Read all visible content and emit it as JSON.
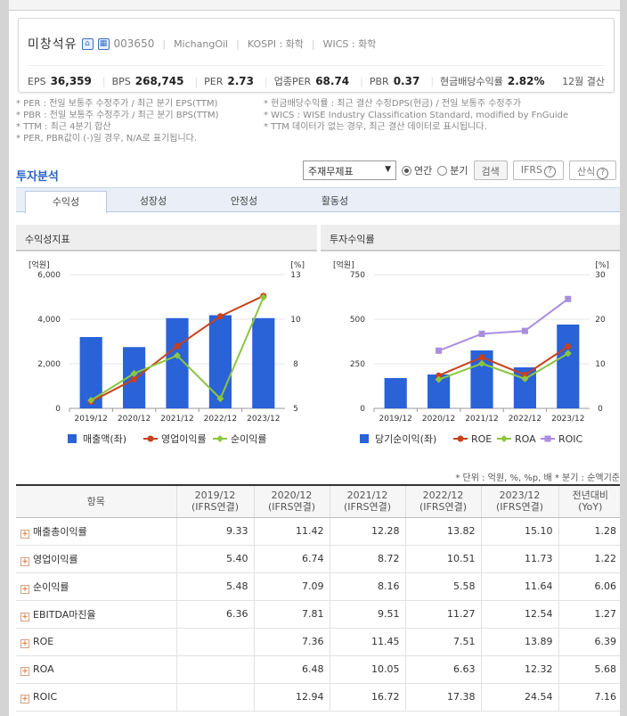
{
  "company": {
    "name": "미창석유",
    "code": "003650",
    "eng_name": "MichangOil",
    "kospi": "KOSPI : 화학",
    "wics": "WICS : 화학"
  },
  "metrics": [
    {
      "label": "EPS",
      "value": "36,359"
    },
    {
      "label": "BPS",
      "value": "268,745"
    },
    {
      "label": "PER",
      "value": "2.73"
    },
    {
      "label": "업종PER",
      "value": "68.74"
    },
    {
      "label": "PBR",
      "value": "0.37"
    },
    {
      "label": "현금배당수익률",
      "value": "2.82%"
    }
  ],
  "settlement": "12월 결산",
  "notes_left": [
    "* PER : 전일 보통주 수정주가 / 최근 분기 EPS(TTM)",
    "* PBR : 전일 보통주 수정주가 / 최근 분기 BPS(TTM)",
    "* TTM : 최근 4분기 합산",
    "* PER, PBR값이 (-)일 경우, N/A로 표기됩니다."
  ],
  "notes_right": [
    "* 현금배당수익률 : 최근 결산 수정DPS(현금) / 전일 보통주 수정주가",
    "* WICS : WISE Industry Classification Standard, modified by FnGuide",
    "* TTM 데이터가 없는 경우, 최근 결산 데이터로 표시됩니다."
  ],
  "section_title": "투자분석",
  "controls": {
    "select_value": "주재무제표",
    "radio_year": "연간",
    "radio_quarter": "분기",
    "search": "검색",
    "ifrs": "IFRS",
    "formula": "산식",
    "help": "?"
  },
  "tabs": [
    "수익성",
    "성장성",
    "안정성",
    "활동성"
  ],
  "chart_titles": [
    "수익성지표",
    "투자수익률"
  ],
  "chart_data": [
    {
      "type": "bar",
      "categories": [
        "2019/12",
        "2020/12",
        "2021/12",
        "2022/12",
        "2023/12"
      ],
      "ylabel": "[억원]",
      "y2label": "[%]",
      "ylim": [
        0,
        6000
      ],
      "y2lim": [
        5,
        13
      ],
      "yticks": [
        "0",
        "2,000",
        "4,000",
        "6,000"
      ],
      "y2ticks": [
        "5",
        "8",
        "10",
        "13"
      ],
      "series": [
        {
          "name": "매출액(좌)",
          "kind": "bar",
          "axis": "left",
          "color": "#2a62d8",
          "values": [
            3200,
            2750,
            4050,
            4180,
            4050
          ]
        },
        {
          "name": "영업이익률",
          "kind": "line",
          "axis": "right",
          "color": "#c9401a",
          "values": [
            5.4,
            6.74,
            8.72,
            10.51,
            11.73
          ]
        },
        {
          "name": "순이익률",
          "kind": "line",
          "axis": "right",
          "color": "#8cc63f",
          "values": [
            5.48,
            7.09,
            8.16,
            5.58,
            11.64
          ]
        }
      ],
      "legend": "bottom"
    },
    {
      "type": "bar",
      "categories": [
        "2019/12",
        "2020/12",
        "2021/12",
        "2022/12",
        "2023/12"
      ],
      "ylabel": "[억원]",
      "y2label": "[%]",
      "ylim": [
        0,
        750
      ],
      "y2lim": [
        0,
        30
      ],
      "yticks": [
        "0",
        "250",
        "500",
        "750"
      ],
      "y2ticks": [
        "0",
        "10",
        "20",
        "30"
      ],
      "series": [
        {
          "name": "당기순이익(좌)",
          "kind": "bar",
          "axis": "left",
          "color": "#2a62d8",
          "values": [
            170,
            190,
            325,
            230,
            470
          ]
        },
        {
          "name": "ROE",
          "kind": "line",
          "axis": "right",
          "color": "#c9401a",
          "values": [
            null,
            7.36,
            11.45,
            7.51,
            13.89
          ]
        },
        {
          "name": "ROA",
          "kind": "line",
          "axis": "right",
          "color": "#8cc63f",
          "values": [
            null,
            6.48,
            10.05,
            6.63,
            12.32
          ]
        },
        {
          "name": "ROIC",
          "kind": "line",
          "axis": "right",
          "color": "#a98ee0",
          "values": [
            null,
            12.94,
            16.72,
            17.38,
            24.54
          ]
        }
      ],
      "legend": "bottom"
    }
  ],
  "unit_note": "* 단위 : 억원, %, %p, 배     * 분기 : 순액기준",
  "table": {
    "headers": [
      {
        "l1": "항목",
        "l2": ""
      },
      {
        "l1": "2019/12",
        "l2": "(IFRS연결)"
      },
      {
        "l1": "2020/12",
        "l2": "(IFRS연결)"
      },
      {
        "l1": "2021/12",
        "l2": "(IFRS연결)"
      },
      {
        "l1": "2022/12",
        "l2": "(IFRS연결)"
      },
      {
        "l1": "2023/12",
        "l2": "(IFRS연결)"
      },
      {
        "l1": "전년대비",
        "l2": "(YoY)"
      }
    ],
    "rows": [
      {
        "label": "매출총이익률",
        "values": [
          "9.33",
          "11.42",
          "12.28",
          "13.82",
          "15.10",
          "1.28"
        ]
      },
      {
        "label": "영업이익률",
        "values": [
          "5.40",
          "6.74",
          "8.72",
          "10.51",
          "11.73",
          "1.22"
        ]
      },
      {
        "label": "순이익률",
        "values": [
          "5.48",
          "7.09",
          "8.16",
          "5.58",
          "11.64",
          "6.06"
        ]
      },
      {
        "label": "EBITDA마진율",
        "values": [
          "6.36",
          "7.81",
          "9.51",
          "11.27",
          "12.54",
          "1.27"
        ]
      },
      {
        "label": "ROE",
        "values": [
          "",
          "7.36",
          "11.45",
          "7.51",
          "13.89",
          "6.39"
        ]
      },
      {
        "label": "ROA",
        "values": [
          "",
          "6.48",
          "10.05",
          "6.63",
          "12.32",
          "5.68"
        ]
      },
      {
        "label": "ROIC",
        "values": [
          "",
          "12.94",
          "16.72",
          "17.38",
          "24.54",
          "7.16"
        ]
      }
    ]
  }
}
